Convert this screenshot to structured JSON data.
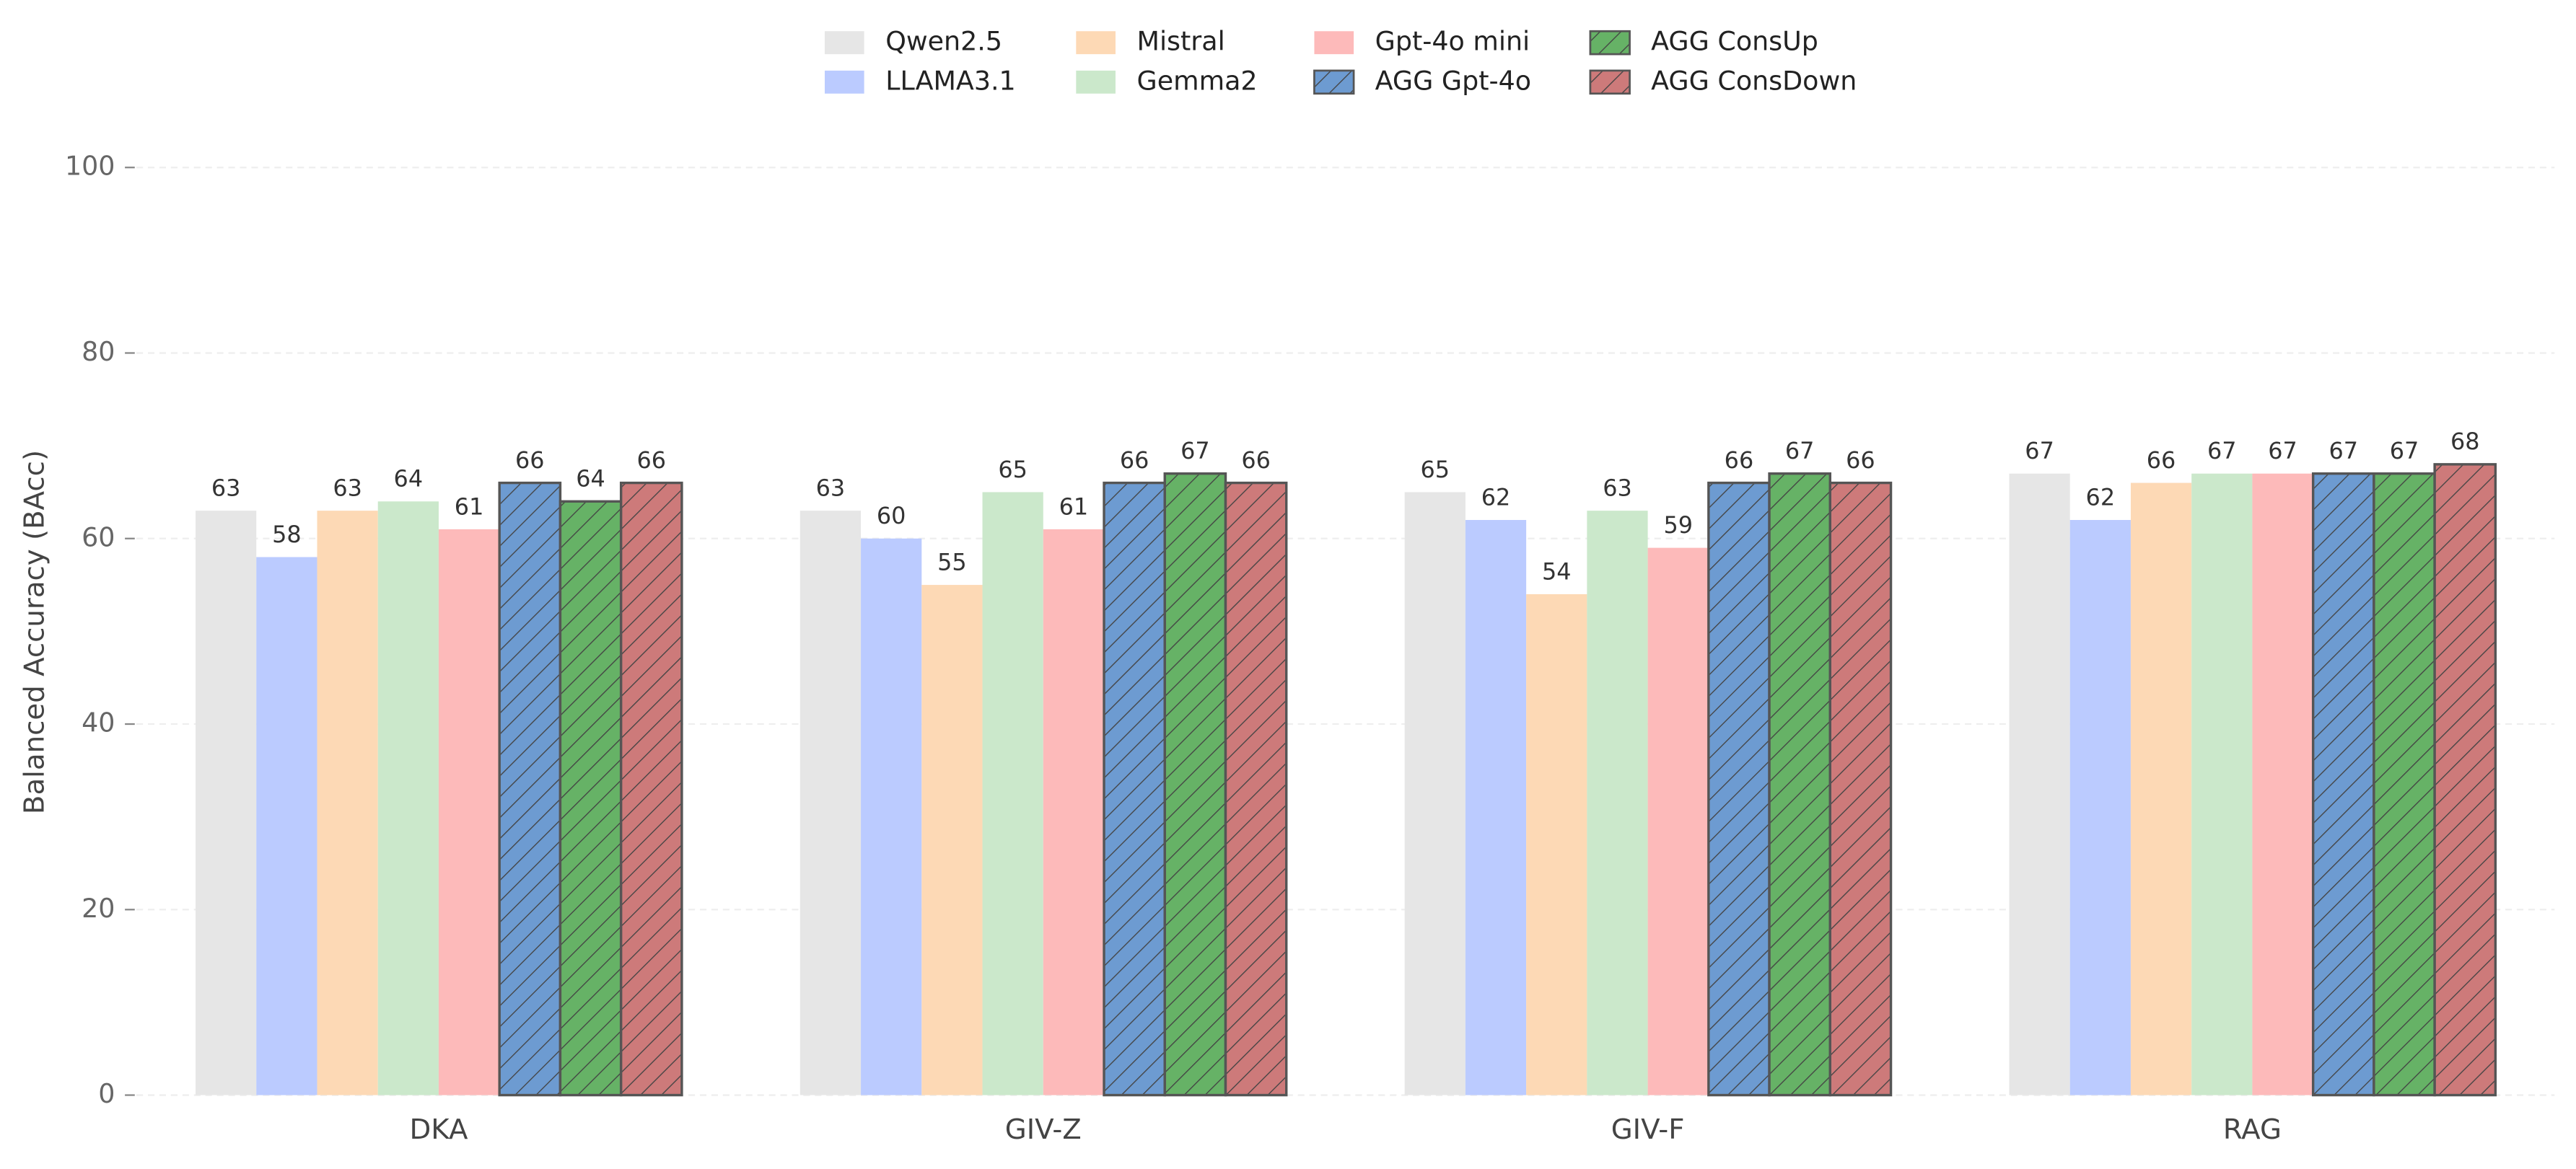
{
  "chart_data": {
    "type": "bar",
    "y_label": "Balanced Accuracy (BAcc)",
    "categories": [
      "DKA",
      "GIV-Z",
      "GIV-F",
      "RAG"
    ],
    "series": [
      {
        "name": "Qwen2.5",
        "color": "#e6e6e6",
        "hatch": false,
        "values": [
          63,
          63,
          65,
          67
        ]
      },
      {
        "name": "LLAMA3.1",
        "color": "#bbcbff",
        "hatch": false,
        "values": [
          58,
          60,
          62,
          62
        ]
      },
      {
        "name": "Mistral",
        "color": "#fdd9b5",
        "hatch": false,
        "values": [
          63,
          55,
          54,
          66
        ]
      },
      {
        "name": "Gemma2",
        "color": "#cbe8cb",
        "hatch": false,
        "values": [
          64,
          65,
          63,
          67
        ]
      },
      {
        "name": "Gpt-4o mini",
        "color": "#fdbaba",
        "hatch": false,
        "values": [
          61,
          61,
          59,
          67
        ]
      },
      {
        "name": "AGG Gpt-4o",
        "color": "#6d9bd1",
        "hatch": true,
        "values": [
          66,
          66,
          66,
          67
        ]
      },
      {
        "name": "AGG ConsUp",
        "color": "#66b266",
        "hatch": true,
        "values": [
          64,
          67,
          67,
          67
        ]
      },
      {
        "name": "AGG ConsDown",
        "color": "#cd7a7a",
        "hatch": true,
        "values": [
          66,
          66,
          66,
          68
        ]
      }
    ],
    "ylim": [
      0,
      100
    ],
    "yticks": [
      0,
      20,
      40,
      60,
      80,
      100
    ],
    "grid": true,
    "legend": "top"
  }
}
